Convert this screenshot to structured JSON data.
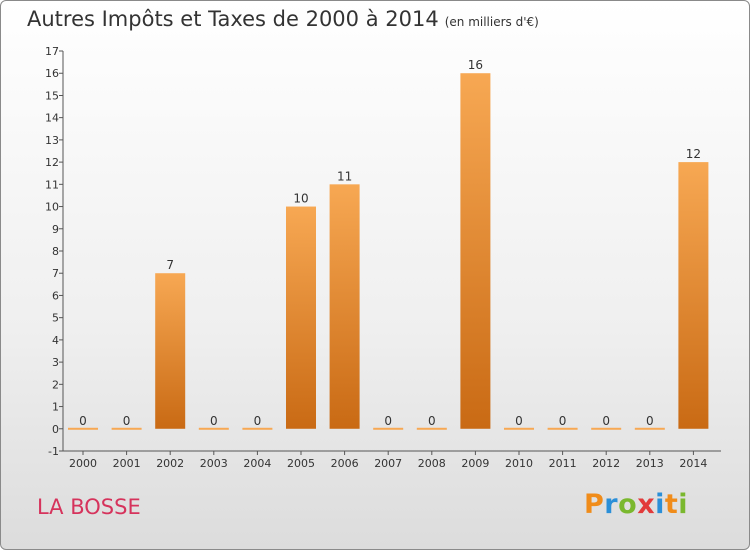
{
  "title": "Autres Impôts et Taxes de 2000 à 2014",
  "subtitle": "(en milliers d'€)",
  "place": "LA BOSSE",
  "brand": {
    "letters": [
      "P",
      "r",
      "o",
      "x",
      "i",
      "t",
      "i"
    ],
    "colors": [
      "#f08c1a",
      "#2a8fd8",
      "#7ab82e",
      "#e23b3b",
      "#2a8fd8",
      "#f08c1a",
      "#7ab82e"
    ]
  },
  "chart_data": {
    "type": "bar",
    "categories": [
      "2000",
      "2001",
      "2002",
      "2003",
      "2004",
      "2005",
      "2006",
      "2007",
      "2008",
      "2009",
      "2010",
      "2011",
      "2012",
      "2013",
      "2014"
    ],
    "values": [
      0,
      0,
      7,
      0,
      0,
      10,
      11,
      0,
      0,
      16,
      0,
      0,
      0,
      0,
      12
    ],
    "data_labels": [
      "0",
      "0",
      "7",
      "0",
      "0",
      "10",
      "11",
      "0",
      "0",
      "16",
      "0",
      "0",
      "0",
      "0",
      "12"
    ],
    "yticks": [
      "-1",
      "0",
      "1",
      "2",
      "3",
      "4",
      "5",
      "6",
      "7",
      "8",
      "9",
      "10",
      "11",
      "12",
      "13",
      "14",
      "15",
      "16",
      "17"
    ],
    "ylim": [
      -1,
      17
    ],
    "bar_color_top": "#f7a853",
    "bar_color_bottom": "#c96a14"
  }
}
